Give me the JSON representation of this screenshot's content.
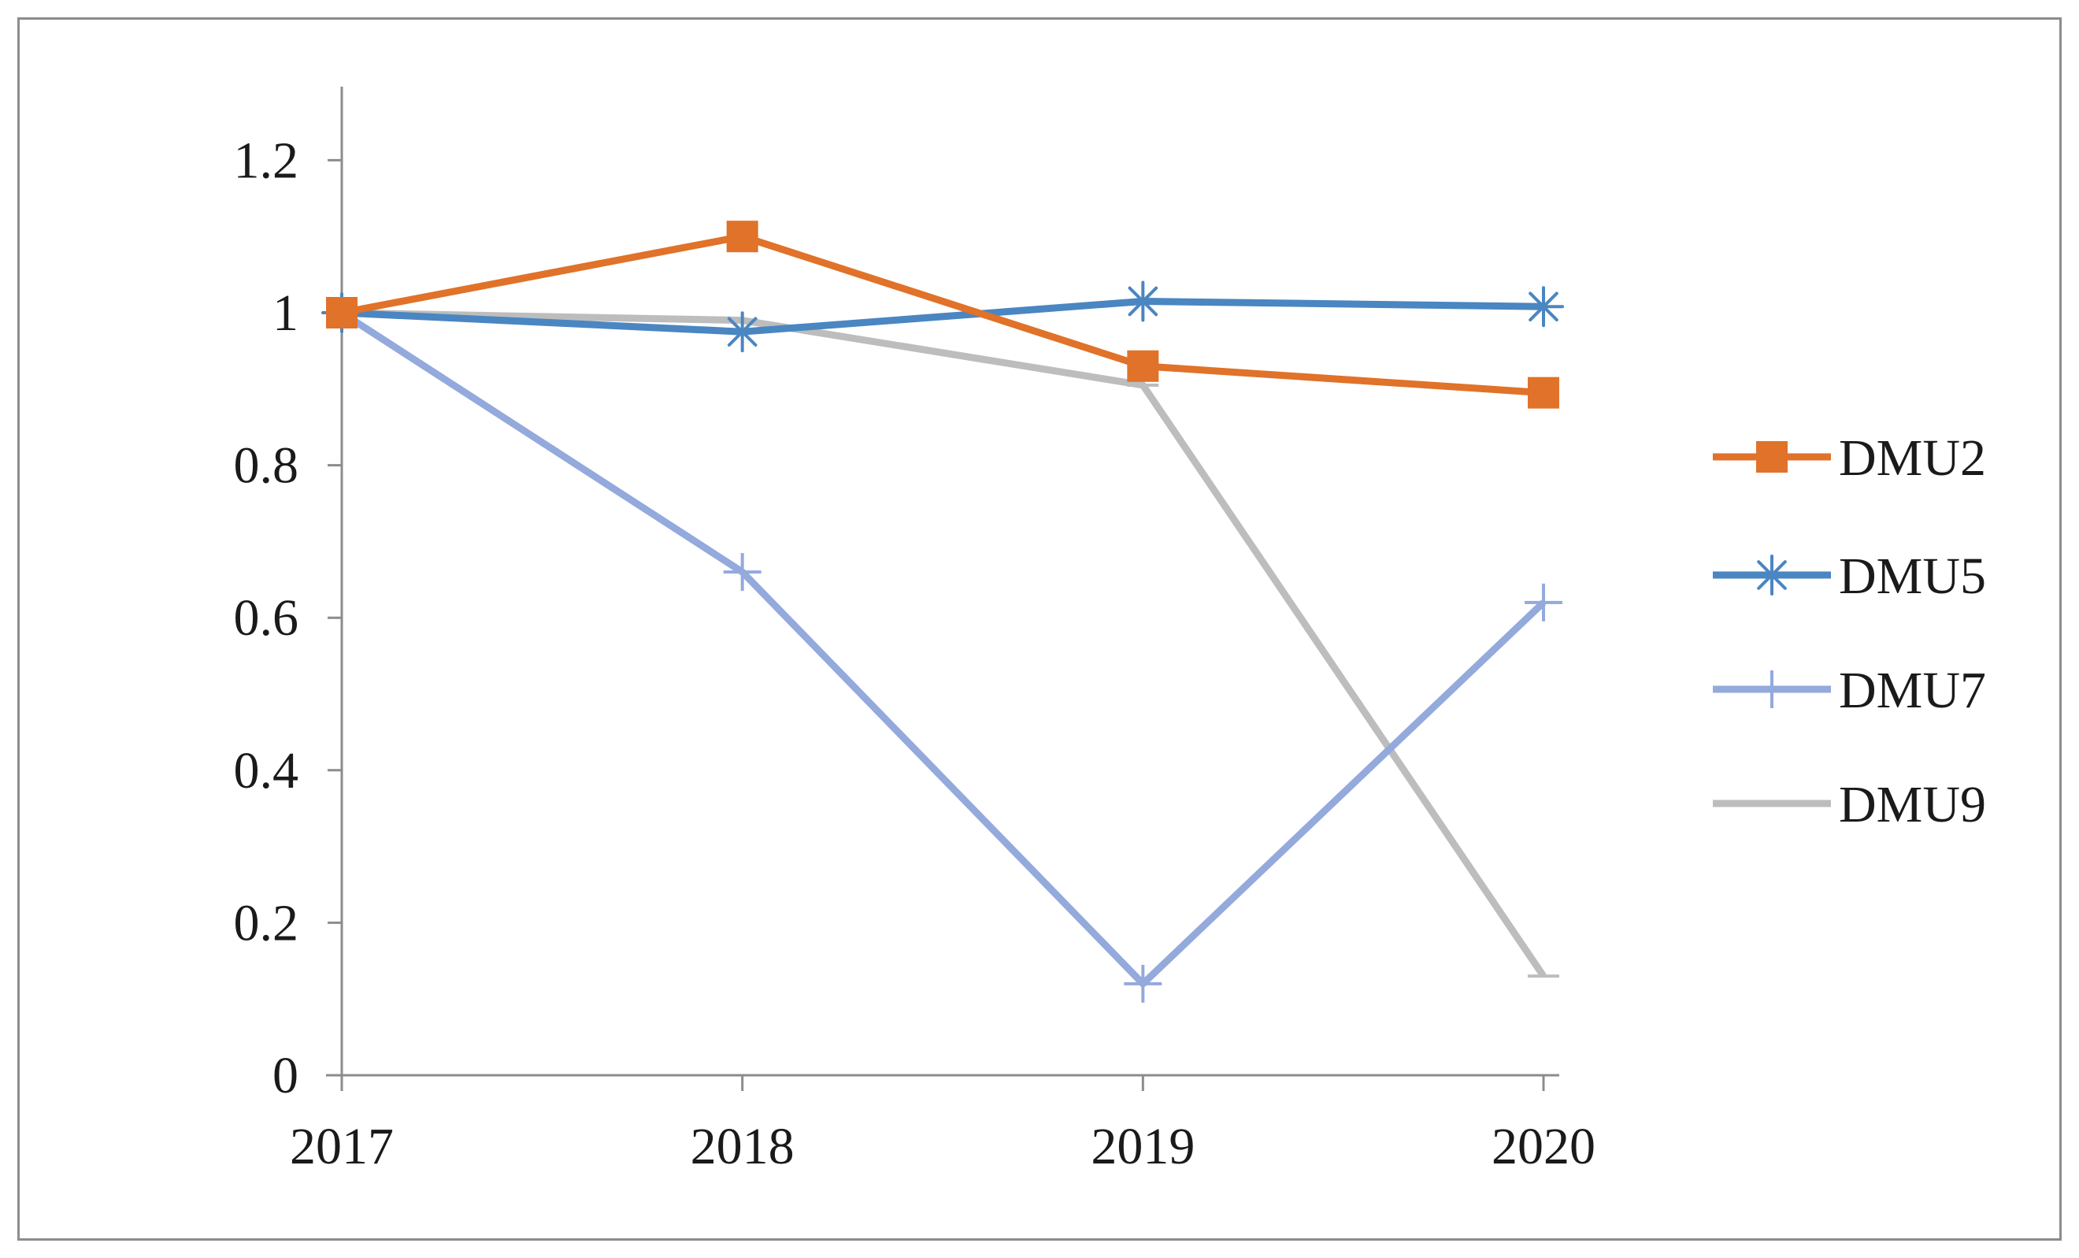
{
  "chart_data": {
    "type": "line",
    "title": "",
    "xlabel": "",
    "ylabel": "",
    "x": [
      "2017",
      "2018",
      "2019",
      "2020"
    ],
    "ylim": [
      0,
      1.3
    ],
    "yticks": [
      "0",
      "0.2",
      "0.4",
      "0.6",
      "0.8",
      "1",
      "1.2"
    ],
    "yticks_values": [
      0,
      0.2,
      0.4,
      0.6,
      0.8,
      1.0,
      1.2
    ],
    "grid": false,
    "legend_position": "right",
    "series": [
      {
        "name": "DMU2",
        "values": [
          1.0,
          1.1,
          0.93,
          0.895
        ],
        "color": "#e07229",
        "marker": "square"
      },
      {
        "name": "DMU5",
        "values": [
          1.0,
          0.975,
          1.015,
          1.008
        ],
        "color": "#4a86c1",
        "marker": "asterisk"
      },
      {
        "name": "DMU7",
        "values": [
          1.0,
          0.66,
          0.12,
          0.62
        ],
        "color": "#94a9dc",
        "marker": "plus"
      },
      {
        "name": "DMU9",
        "values": [
          1.0,
          0.99,
          0.905,
          0.13
        ],
        "color": "#bdbdbd",
        "marker": "dash"
      }
    ]
  }
}
